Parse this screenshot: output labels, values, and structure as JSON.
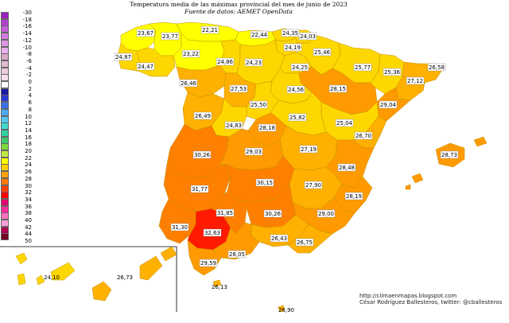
{
  "header": {
    "title": "Temperatura media de las máximas provincial del mes de junio de 2023",
    "subtitle": "Fuente de datos: AEMET OpenData"
  },
  "legend": {
    "labels": [
      "-30",
      "-18",
      "-16",
      "-14",
      "-12",
      "-10",
      "-8",
      "-6",
      "-4",
      "-2",
      "0",
      "2",
      "4",
      "6",
      "8",
      "10",
      "12",
      "14",
      "16",
      "18",
      "20",
      "22",
      "24",
      "26",
      "28",
      "30",
      "32",
      "34",
      "36",
      "38",
      "40",
      "42",
      "44",
      "50"
    ],
    "colors": [
      "#9b1fc0",
      "#b23fce",
      "#c45ed8",
      "#d37be0",
      "#df96e6",
      "#e8afec",
      "#d9a8c6",
      "#e2b8cf",
      "#ebcbdb",
      "#f3e0ea",
      "#ffffff",
      "#1a1aa0",
      "#2a3ad0",
      "#3a70e8",
      "#4aa8f0",
      "#50c8f0",
      "#40d8d0",
      "#30d0a0",
      "#40c870",
      "#80d840",
      "#c0e840",
      "#ffff00",
      "#ffd000",
      "#ffa000",
      "#ff7800",
      "#ff4000",
      "#ff0000",
      "#e0006e",
      "#ff2aa0",
      "#ff70c0",
      "#ff9fd8",
      "#b00050",
      "#700020"
    ]
  },
  "regions": [
    {
      "id": "a-coruna",
      "value": "23,67",
      "color": "#ffff00"
    },
    {
      "id": "lugo",
      "value": "23,77",
      "color": "#ffff00"
    },
    {
      "id": "asturias",
      "value": "22,21",
      "color": "#ffff00"
    },
    {
      "id": "cantabria",
      "value": "22,44",
      "color": "#ffff00"
    },
    {
      "id": "vizcaya",
      "value": "24,35",
      "color": "#ffd700"
    },
    {
      "id": "guipuzcoa",
      "value": "24,03",
      "color": "#ffd700"
    },
    {
      "id": "pontevedra",
      "value": "24,87",
      "color": "#ffd700"
    },
    {
      "id": "ourense",
      "value": "24,47",
      "color": "#ffd700"
    },
    {
      "id": "leon",
      "value": "23,22",
      "color": "#ffff00"
    },
    {
      "id": "palencia",
      "value": "24,86",
      "color": "#ffd700"
    },
    {
      "id": "burgos",
      "value": "24,23",
      "color": "#ffd700"
    },
    {
      "id": "alava",
      "value": "24,19",
      "color": "#ffd700"
    },
    {
      "id": "navarra",
      "value": "25,46",
      "color": "#ffd700"
    },
    {
      "id": "la-rioja",
      "value": "24,25",
      "color": "#ffd700"
    },
    {
      "id": "huesca",
      "value": "25,77",
      "color": "#ffd700"
    },
    {
      "id": "lleida",
      "value": "25,36",
      "color": "#ffd700"
    },
    {
      "id": "girona",
      "value": "26,58",
      "color": "#ffb000"
    },
    {
      "id": "barcelona",
      "value": "27,12",
      "color": "#ffb000"
    },
    {
      "id": "zamora",
      "value": "26,46",
      "color": "#ffb000"
    },
    {
      "id": "valladolid",
      "value": "27,53",
      "color": "#ffb000"
    },
    {
      "id": "soria",
      "value": "24,56",
      "color": "#ffd700"
    },
    {
      "id": "zaragoza",
      "value": "28,15",
      "color": "#ff9a00"
    },
    {
      "id": "tarragona",
      "value": "29,04",
      "color": "#ff9a00"
    },
    {
      "id": "salamanca",
      "value": "26,49",
      "color": "#ffb000"
    },
    {
      "id": "avila",
      "value": "24,83",
      "color": "#ffd700"
    },
    {
      "id": "segovia",
      "value": "25,50",
      "color": "#ffd700"
    },
    {
      "id": "guadalajara",
      "value": "25,82",
      "color": "#ffd700"
    },
    {
      "id": "teruel",
      "value": "25,04",
      "color": "#ffd700"
    },
    {
      "id": "castellon",
      "value": "26,70",
      "color": "#ffb000"
    },
    {
      "id": "madrid",
      "value": "28,18",
      "color": "#ff9a00"
    },
    {
      "id": "caceres",
      "value": "30,26",
      "color": "#ff7f00"
    },
    {
      "id": "toledo",
      "value": "29,03",
      "color": "#ff9a00"
    },
    {
      "id": "cuenca",
      "value": "27,19",
      "color": "#ffb000"
    },
    {
      "id": "valencia",
      "value": "28,48",
      "color": "#ff9a00"
    },
    {
      "id": "badajoz",
      "value": "31,77",
      "color": "#ff7f00"
    },
    {
      "id": "ciudad-real",
      "value": "30,15",
      "color": "#ff7f00"
    },
    {
      "id": "albacete",
      "value": "27,90",
      "color": "#ffb000"
    },
    {
      "id": "alicante",
      "value": "28,19",
      "color": "#ff9a00"
    },
    {
      "id": "cordoba",
      "value": "31,85",
      "color": "#ff7f00"
    },
    {
      "id": "jaen",
      "value": "30,26",
      "color": "#ff7f00"
    },
    {
      "id": "murcia",
      "value": "29,00",
      "color": "#ff9a00"
    },
    {
      "id": "huelva",
      "value": "31,30",
      "color": "#ff7f00"
    },
    {
      "id": "sevilla",
      "value": "32,63",
      "color": "#ff1a00"
    },
    {
      "id": "granada",
      "value": "26,43",
      "color": "#ffb000"
    },
    {
      "id": "almeria",
      "value": "26,75",
      "color": "#ffb000"
    },
    {
      "id": "malaga",
      "value": "28,05",
      "color": "#ff9a00"
    },
    {
      "id": "cadiz",
      "value": "29,59",
      "color": "#ff9a00"
    },
    {
      "id": "ceuta",
      "value": "26,13",
      "color": "#ffb000"
    },
    {
      "id": "baleares",
      "value": "28,73",
      "color": "#ff9a00"
    },
    {
      "id": "sc-tenerife",
      "value": "24,10",
      "color": "#ffd700"
    },
    {
      "id": "las-palmas",
      "value": "26,73",
      "color": "#ffb000"
    },
    {
      "id": "melilla",
      "value": "26,90",
      "color": "#ffb000"
    }
  ],
  "credits": {
    "url": "http://climaenmapas.blogspot.com",
    "author": "César Rodríguez Ballesteros, twitter: @cballesteros"
  }
}
